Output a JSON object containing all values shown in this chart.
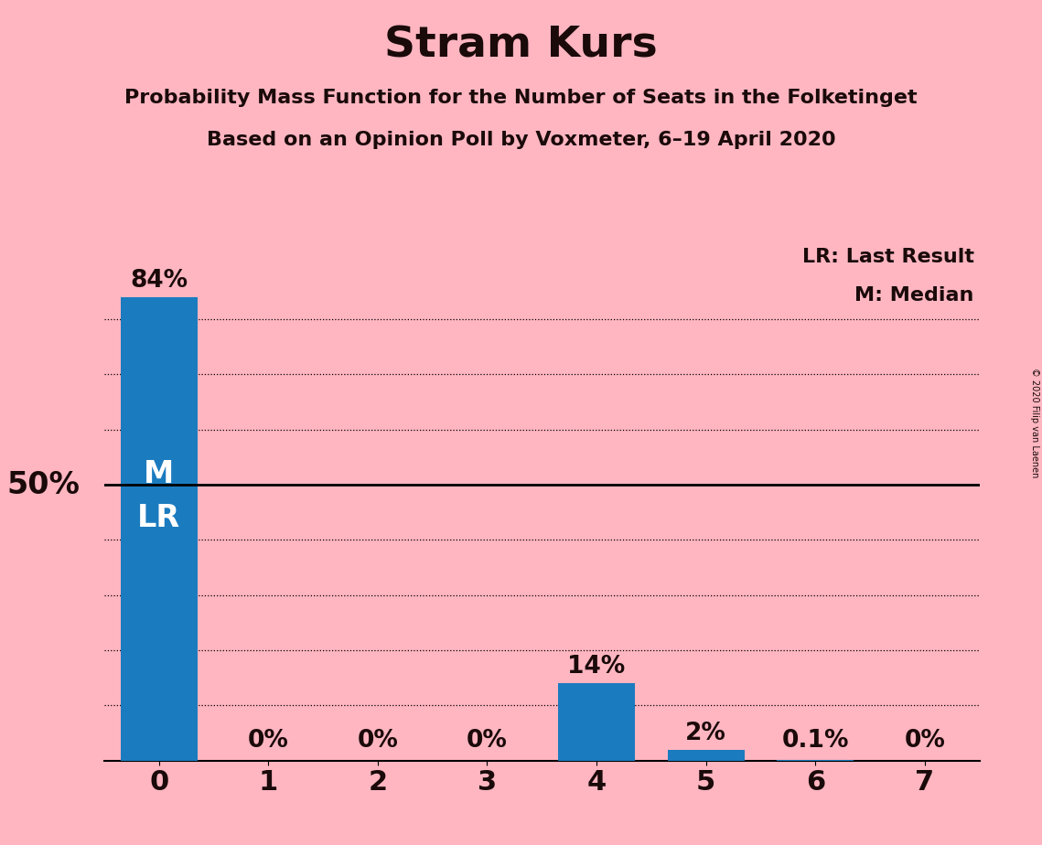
{
  "title": "Stram Kurs",
  "subtitle1": "Probability Mass Function for the Number of Seats in the Folketinget",
  "subtitle2": "Based on an Opinion Poll by Voxmeter, 6–19 April 2020",
  "copyright": "© 2020 Filip van Laenen",
  "categories": [
    0,
    1,
    2,
    3,
    4,
    5,
    6,
    7
  ],
  "values": [
    84,
    0,
    0,
    0,
    14,
    2,
    0.1,
    0
  ],
  "bar_labels": [
    "84%",
    "0%",
    "0%",
    "0%",
    "14%",
    "2%",
    "0.1%",
    "0%"
  ],
  "bar_color": "#1B7BBF",
  "background_color": "#FFB6C1",
  "title_fontsize": 34,
  "subtitle_fontsize": 16,
  "bar_label_fontsize": 19,
  "tick_fontsize": 22,
  "fifty_pct_label": "50%",
  "fifty_pct_fontsize": 24,
  "legend_lr": "LR: Last Result",
  "legend_m": "M: Median",
  "legend_fontsize": 16,
  "bar0_label_m": "M",
  "bar0_label_lr": "LR",
  "bar0_inner_fontsize": 24,
  "ylim_max": 95,
  "fifty_pct_line": 50,
  "dotted_lines": [
    10,
    20,
    30,
    40,
    60,
    70,
    80
  ],
  "copyright_fontsize": 7
}
